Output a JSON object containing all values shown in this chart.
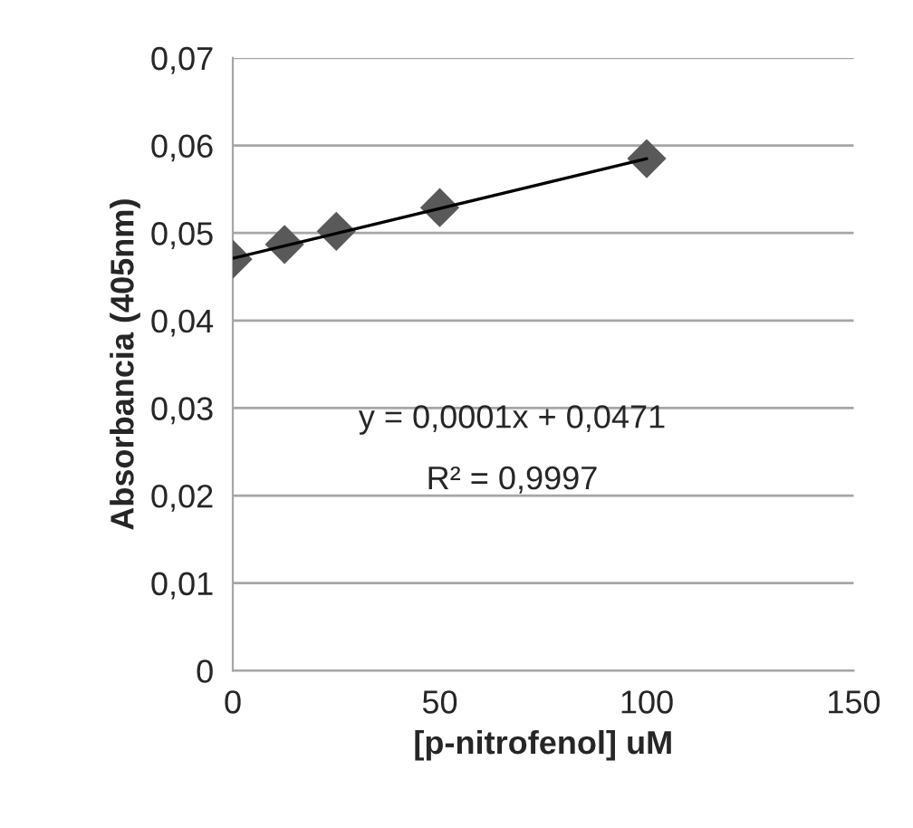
{
  "chart_data": {
    "type": "scatter",
    "xlabel": "[p-nitrofenol] uM",
    "ylabel": "Absorbancia (405nm)",
    "x": [
      0,
      12.5,
      25,
      50,
      100
    ],
    "series": [
      {
        "color": "#595959",
        "marker": "diamond",
        "values": [
          0.047,
          0.0487,
          0.0502,
          0.0529,
          0.0585
        ]
      },
      {
        "type": "line",
        "color": "#000000",
        "x": [
          0,
          100
        ],
        "values": [
          0.0471,
          0.0585
        ],
        "line_style": "solid"
      }
    ],
    "annotations": [
      "y = 0,0001x + 0,0471",
      "R² = 0,9997"
    ],
    "xlim": [
      0,
      150
    ],
    "xticks": [
      0,
      50,
      100,
      150
    ],
    "ylim": [
      0,
      0.07
    ],
    "yticks": [
      0,
      {
        "value": 0.01,
        "label": "0,01"
      },
      {
        "value": 0.02,
        "label": "0,02"
      },
      {
        "value": 0.03,
        "label": "0,03"
      },
      {
        "value": 0.04,
        "label": "0,04"
      },
      {
        "value": 0.05,
        "label": "0,05"
      },
      {
        "value": 0.06,
        "label": "0,06"
      },
      {
        "value": 0.07,
        "label": "0,07"
      }
    ],
    "grid": "y"
  }
}
